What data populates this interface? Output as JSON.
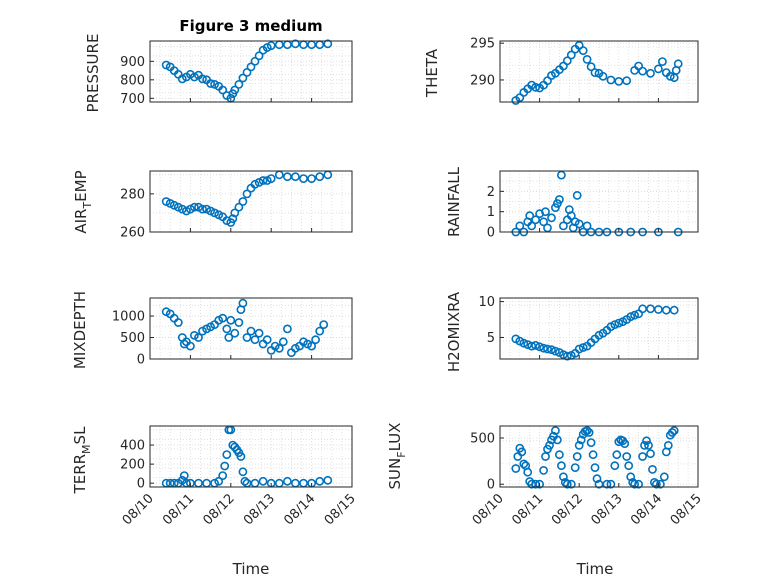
{
  "title": "Figure 3 medium",
  "colors": {
    "marker": "#0072BD",
    "axis": "#262626",
    "grid": "#d9d9d9"
  },
  "chart_data": [
    {
      "id": "pressure",
      "type": "scatter",
      "ylabel": "PRESSURE",
      "yticks": [
        "700",
        "800",
        "900"
      ],
      "ylim": [
        680,
        1010
      ],
      "grid": true,
      "points": [
        [
          10.4,
          880
        ],
        [
          10.5,
          870
        ],
        [
          10.6,
          850
        ],
        [
          10.7,
          830
        ],
        [
          10.8,
          805
        ],
        [
          10.9,
          815
        ],
        [
          11.0,
          830
        ],
        [
          11.1,
          815
        ],
        [
          11.2,
          825
        ],
        [
          11.3,
          805
        ],
        [
          11.4,
          800
        ],
        [
          11.5,
          780
        ],
        [
          11.6,
          775
        ],
        [
          11.7,
          765
        ],
        [
          11.8,
          745
        ],
        [
          11.9,
          715
        ],
        [
          12.0,
          700
        ],
        [
          12.05,
          725
        ],
        [
          12.1,
          745
        ],
        [
          12.2,
          775
        ],
        [
          12.3,
          810
        ],
        [
          12.4,
          840
        ],
        [
          12.5,
          870
        ],
        [
          12.6,
          900
        ],
        [
          12.7,
          930
        ],
        [
          12.8,
          960
        ],
        [
          12.9,
          975
        ],
        [
          13.0,
          985
        ],
        [
          13.2,
          990
        ],
        [
          13.4,
          990
        ],
        [
          13.6,
          995
        ],
        [
          13.8,
          990
        ],
        [
          14.0,
          990
        ],
        [
          14.2,
          990
        ],
        [
          14.4,
          995
        ]
      ]
    },
    {
      "id": "theta",
      "type": "scatter",
      "ylabel": "THETA",
      "yticks": [
        "290",
        "295"
      ],
      "ylim": [
        287,
        295.3
      ],
      "grid": true,
      "points": [
        [
          10.4,
          287.2
        ],
        [
          10.5,
          287.6
        ],
        [
          10.6,
          288.3
        ],
        [
          10.7,
          288.8
        ],
        [
          10.8,
          289.3
        ],
        [
          10.9,
          289.0
        ],
        [
          11.0,
          288.9
        ],
        [
          11.1,
          289.3
        ],
        [
          11.2,
          289.9
        ],
        [
          11.3,
          290.6
        ],
        [
          11.4,
          290.9
        ],
        [
          11.5,
          291.4
        ],
        [
          11.6,
          291.9
        ],
        [
          11.7,
          292.6
        ],
        [
          11.8,
          293.4
        ],
        [
          11.9,
          294.2
        ],
        [
          12.0,
          294.7
        ],
        [
          12.1,
          294.0
        ],
        [
          12.2,
          292.8
        ],
        [
          12.3,
          291.8
        ],
        [
          12.4,
          291.0
        ],
        [
          12.5,
          290.9
        ],
        [
          12.6,
          290.5
        ],
        [
          12.8,
          290.0
        ],
        [
          13.0,
          289.8
        ],
        [
          13.2,
          289.9
        ],
        [
          13.4,
          291.3
        ],
        [
          13.5,
          291.9
        ],
        [
          13.6,
          291.2
        ],
        [
          13.8,
          290.9
        ],
        [
          14.0,
          291.5
        ],
        [
          14.1,
          292.5
        ],
        [
          14.2,
          291.0
        ],
        [
          14.3,
          290.5
        ],
        [
          14.4,
          290.3
        ],
        [
          14.45,
          291.3
        ],
        [
          14.5,
          292.2
        ]
      ]
    },
    {
      "id": "air_temp",
      "type": "scatter",
      "ylabel_main": "AIR",
      "ylabel_sub": "T",
      "ylabel_rest": "EMP",
      "yticks": [
        "260",
        "280"
      ],
      "ylim": [
        260,
        292
      ],
      "grid": true,
      "points": [
        [
          10.4,
          276
        ],
        [
          10.5,
          275
        ],
        [
          10.6,
          274
        ],
        [
          10.7,
          273
        ],
        [
          10.8,
          272
        ],
        [
          10.9,
          271
        ],
        [
          11.0,
          272
        ],
        [
          11.1,
          273
        ],
        [
          11.2,
          273
        ],
        [
          11.3,
          272
        ],
        [
          11.4,
          272
        ],
        [
          11.5,
          271
        ],
        [
          11.6,
          270
        ],
        [
          11.7,
          269
        ],
        [
          11.8,
          268
        ],
        [
          11.9,
          266
        ],
        [
          12.0,
          265
        ],
        [
          12.05,
          267
        ],
        [
          12.1,
          270
        ],
        [
          12.2,
          273
        ],
        [
          12.3,
          276
        ],
        [
          12.4,
          280
        ],
        [
          12.5,
          283
        ],
        [
          12.6,
          285
        ],
        [
          12.7,
          286
        ],
        [
          12.8,
          287
        ],
        [
          12.9,
          287
        ],
        [
          13.0,
          288
        ],
        [
          13.2,
          290
        ],
        [
          13.4,
          289
        ],
        [
          13.6,
          289
        ],
        [
          13.8,
          288
        ],
        [
          14.0,
          288
        ],
        [
          14.2,
          289
        ],
        [
          14.4,
          290
        ]
      ]
    },
    {
      "id": "rainfall",
      "type": "scatter",
      "ylabel": "RAINFALL",
      "yticks": [
        "0",
        "1",
        "2"
      ],
      "ylim": [
        0,
        3
      ],
      "grid": true,
      "points": [
        [
          10.4,
          0
        ],
        [
          10.5,
          0.3
        ],
        [
          10.6,
          0
        ],
        [
          10.7,
          0.5
        ],
        [
          10.75,
          0.8
        ],
        [
          10.8,
          0.3
        ],
        [
          10.9,
          0.6
        ],
        [
          11.0,
          0.9
        ],
        [
          11.1,
          0.5
        ],
        [
          11.15,
          1.0
        ],
        [
          11.2,
          0.2
        ],
        [
          11.3,
          0.7
        ],
        [
          11.4,
          1.2
        ],
        [
          11.45,
          1.4
        ],
        [
          11.5,
          1.6
        ],
        [
          11.55,
          2.8
        ],
        [
          11.6,
          0.3
        ],
        [
          11.7,
          0.6
        ],
        [
          11.75,
          1.1
        ],
        [
          11.8,
          0.8
        ],
        [
          11.85,
          0.2
        ],
        [
          11.9,
          0.5
        ],
        [
          11.95,
          1.8
        ],
        [
          12.0,
          0.4
        ],
        [
          12.1,
          0
        ],
        [
          12.2,
          0.3
        ],
        [
          12.3,
          0
        ],
        [
          12.5,
          0
        ],
        [
          12.7,
          0
        ],
        [
          13.0,
          0
        ],
        [
          13.3,
          0
        ],
        [
          13.6,
          0
        ],
        [
          14.0,
          0
        ],
        [
          14.5,
          0
        ]
      ]
    },
    {
      "id": "mixdepth",
      "type": "scatter",
      "ylabel": "MIXDEPTH",
      "yticks": [
        "0",
        "500",
        "1000"
      ],
      "ylim": [
        0,
        1420
      ],
      "grid": true,
      "points": [
        [
          10.4,
          1100
        ],
        [
          10.5,
          1050
        ],
        [
          10.6,
          950
        ],
        [
          10.7,
          850
        ],
        [
          10.8,
          500
        ],
        [
          10.85,
          350
        ],
        [
          10.9,
          400
        ],
        [
          11.0,
          300
        ],
        [
          11.1,
          550
        ],
        [
          11.2,
          500
        ],
        [
          11.3,
          650
        ],
        [
          11.4,
          700
        ],
        [
          11.5,
          750
        ],
        [
          11.6,
          800
        ],
        [
          11.7,
          900
        ],
        [
          11.8,
          950
        ],
        [
          11.9,
          700
        ],
        [
          11.95,
          500
        ],
        [
          12.0,
          900
        ],
        [
          12.1,
          600
        ],
        [
          12.2,
          850
        ],
        [
          12.25,
          1150
        ],
        [
          12.3,
          1300
        ],
        [
          12.4,
          500
        ],
        [
          12.5,
          650
        ],
        [
          12.6,
          450
        ],
        [
          12.7,
          600
        ],
        [
          12.8,
          350
        ],
        [
          12.9,
          450
        ],
        [
          13.0,
          200
        ],
        [
          13.1,
          300
        ],
        [
          13.2,
          250
        ],
        [
          13.3,
          400
        ],
        [
          13.4,
          700
        ],
        [
          13.5,
          150
        ],
        [
          13.6,
          250
        ],
        [
          13.7,
          300
        ],
        [
          13.8,
          400
        ],
        [
          13.9,
          350
        ],
        [
          14.0,
          300
        ],
        [
          14.1,
          450
        ],
        [
          14.2,
          650
        ],
        [
          14.3,
          800
        ]
      ]
    },
    {
      "id": "h2omixra",
      "type": "scatter",
      "ylabel": "H2OMIXRA",
      "yticks": [
        "5",
        "10"
      ],
      "ylim": [
        2,
        10.5
      ],
      "grid": true,
      "points": [
        [
          10.4,
          4.8
        ],
        [
          10.5,
          4.5
        ],
        [
          10.6,
          4.2
        ],
        [
          10.7,
          4.0
        ],
        [
          10.8,
          3.8
        ],
        [
          10.9,
          3.9
        ],
        [
          11.0,
          3.7
        ],
        [
          11.1,
          3.5
        ],
        [
          11.2,
          3.4
        ],
        [
          11.3,
          3.3
        ],
        [
          11.4,
          3.1
        ],
        [
          11.5,
          2.9
        ],
        [
          11.6,
          2.6
        ],
        [
          11.7,
          2.4
        ],
        [
          11.8,
          2.5
        ],
        [
          11.9,
          2.8
        ],
        [
          12.0,
          3.4
        ],
        [
          12.1,
          3.6
        ],
        [
          12.2,
          3.8
        ],
        [
          12.3,
          4.3
        ],
        [
          12.4,
          4.8
        ],
        [
          12.5,
          5.3
        ],
        [
          12.6,
          5.6
        ],
        [
          12.7,
          6.0
        ],
        [
          12.8,
          6.5
        ],
        [
          12.9,
          6.8
        ],
        [
          13.0,
          7.0
        ],
        [
          13.1,
          7.2
        ],
        [
          13.2,
          7.5
        ],
        [
          13.3,
          7.9
        ],
        [
          13.4,
          8.1
        ],
        [
          13.5,
          8.3
        ],
        [
          13.6,
          9.0
        ],
        [
          13.8,
          9.0
        ],
        [
          14.0,
          8.9
        ],
        [
          14.2,
          8.8
        ],
        [
          14.4,
          8.8
        ]
      ]
    },
    {
      "id": "terr_msl",
      "type": "scatter",
      "ylabel_main": "TERR",
      "ylabel_sub": "M",
      "ylabel_rest": "SL",
      "yticks": [
        "0",
        "200",
        "400"
      ],
      "ylim": [
        -40,
        600
      ],
      "grid": true,
      "points": [
        [
          10.4,
          0
        ],
        [
          10.5,
          0
        ],
        [
          10.6,
          0
        ],
        [
          10.7,
          0
        ],
        [
          10.8,
          30
        ],
        [
          10.85,
          80
        ],
        [
          10.9,
          0
        ],
        [
          11.0,
          0
        ],
        [
          11.2,
          0
        ],
        [
          11.4,
          0
        ],
        [
          11.6,
          0
        ],
        [
          11.7,
          20
        ],
        [
          11.8,
          80
        ],
        [
          11.85,
          180
        ],
        [
          11.9,
          300
        ],
        [
          11.95,
          560
        ],
        [
          12.0,
          560
        ],
        [
          12.05,
          400
        ],
        [
          12.1,
          380
        ],
        [
          12.15,
          350
        ],
        [
          12.2,
          320
        ],
        [
          12.25,
          280
        ],
        [
          12.3,
          120
        ],
        [
          12.35,
          20
        ],
        [
          12.4,
          0
        ],
        [
          12.6,
          0
        ],
        [
          12.8,
          20
        ],
        [
          13.0,
          0
        ],
        [
          13.2,
          0
        ],
        [
          13.4,
          20
        ],
        [
          13.6,
          0
        ],
        [
          13.8,
          0
        ],
        [
          14.0,
          0
        ],
        [
          14.2,
          20
        ],
        [
          14.4,
          30
        ]
      ]
    },
    {
      "id": "sun_flux",
      "type": "scatter",
      "ylabel_main": "SUN",
      "ylabel_sub": "F",
      "ylabel_rest": "LUX",
      "yticks": [
        "0",
        "500"
      ],
      "ylim": [
        -30,
        630
      ],
      "grid": true,
      "points": [
        [
          10.4,
          170
        ],
        [
          10.45,
          300
        ],
        [
          10.5,
          390
        ],
        [
          10.55,
          350
        ],
        [
          10.6,
          220
        ],
        [
          10.65,
          200
        ],
        [
          10.7,
          130
        ],
        [
          10.75,
          30
        ],
        [
          10.8,
          0
        ],
        [
          10.9,
          0
        ],
        [
          11.0,
          0
        ],
        [
          11.1,
          150
        ],
        [
          11.15,
          300
        ],
        [
          11.2,
          380
        ],
        [
          11.25,
          420
        ],
        [
          11.3,
          480
        ],
        [
          11.35,
          520
        ],
        [
          11.4,
          580
        ],
        [
          11.45,
          480
        ],
        [
          11.5,
          320
        ],
        [
          11.55,
          200
        ],
        [
          11.6,
          80
        ],
        [
          11.65,
          20
        ],
        [
          11.7,
          0
        ],
        [
          11.8,
          0
        ],
        [
          11.9,
          180
        ],
        [
          11.95,
          300
        ],
        [
          12.0,
          420
        ],
        [
          12.05,
          480
        ],
        [
          12.1,
          540
        ],
        [
          12.15,
          570
        ],
        [
          12.2,
          580
        ],
        [
          12.25,
          560
        ],
        [
          12.3,
          450
        ],
        [
          12.35,
          320
        ],
        [
          12.4,
          180
        ],
        [
          12.45,
          60
        ],
        [
          12.5,
          0
        ],
        [
          12.7,
          0
        ],
        [
          12.8,
          0
        ],
        [
          12.9,
          200
        ],
        [
          12.95,
          320
        ],
        [
          13.0,
          460
        ],
        [
          13.05,
          480
        ],
        [
          13.1,
          470
        ],
        [
          13.15,
          440
        ],
        [
          13.2,
          300
        ],
        [
          13.25,
          200
        ],
        [
          13.3,
          80
        ],
        [
          13.35,
          20
        ],
        [
          13.4,
          0
        ],
        [
          13.5,
          0
        ],
        [
          13.6,
          300
        ],
        [
          13.65,
          420
        ],
        [
          13.7,
          470
        ],
        [
          13.75,
          420
        ],
        [
          13.8,
          330
        ],
        [
          13.85,
          160
        ],
        [
          13.9,
          20
        ],
        [
          13.95,
          0
        ],
        [
          14.05,
          0
        ],
        [
          14.15,
          80
        ],
        [
          14.2,
          350
        ],
        [
          14.25,
          420
        ],
        [
          14.3,
          530
        ],
        [
          14.35,
          560
        ],
        [
          14.4,
          580
        ]
      ]
    }
  ],
  "x_axis": {
    "xlim": [
      10,
      15
    ],
    "ticks": [
      10,
      11,
      12,
      13,
      14,
      15
    ],
    "tick_labels": [
      "08/10",
      "08/11",
      "08/12",
      "08/13",
      "08/14",
      "08/15"
    ],
    "xlabel": "Time"
  }
}
